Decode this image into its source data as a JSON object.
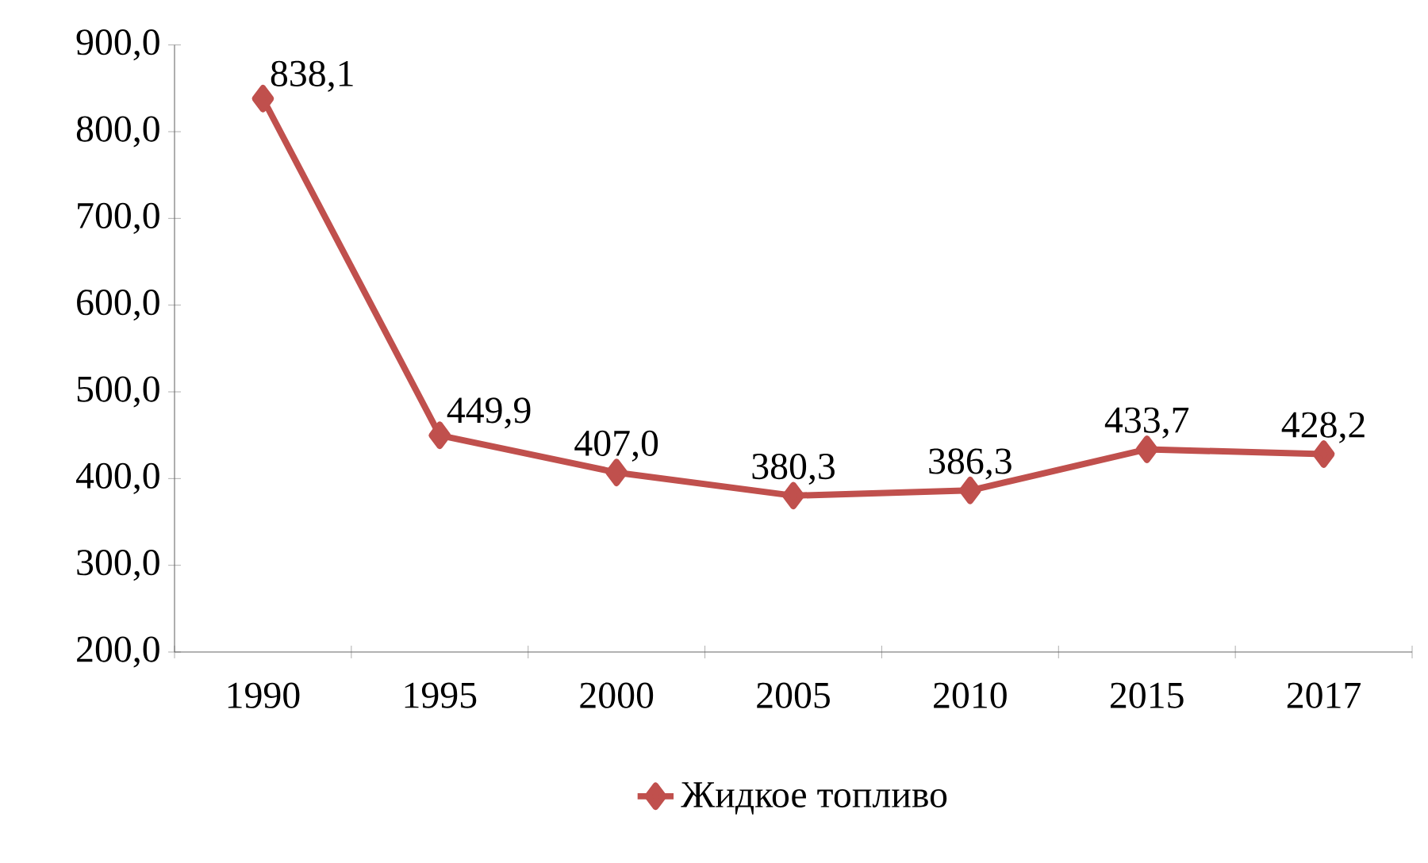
{
  "chart_data": {
    "type": "line",
    "categories": [
      "1990",
      "1995",
      "2000",
      "2005",
      "2010",
      "2015",
      "2017"
    ],
    "series": [
      {
        "name": "Жидкое топливо",
        "color": "#c0504d",
        "values": [
          838.1,
          449.9,
          407.0,
          380.3,
          386.3,
          433.7,
          428.2
        ],
        "value_labels": [
          "838,1",
          "449,9",
          "407,0",
          "380,3",
          "386,3",
          "433,7",
          "428,2"
        ]
      }
    ],
    "ylim": [
      200,
      900
    ],
    "yticks": [
      {
        "value": 200,
        "label": "200,0"
      },
      {
        "value": 300,
        "label": "300,0"
      },
      {
        "value": 400,
        "label": "400,0"
      },
      {
        "value": 500,
        "label": "500,0"
      },
      {
        "value": 600,
        "label": "600,0"
      },
      {
        "value": 700,
        "label": "700,0"
      },
      {
        "value": 800,
        "label": "800,0"
      },
      {
        "value": 900,
        "label": "900,0"
      }
    ],
    "grid": false,
    "legend": "bottom",
    "marker": "diamond",
    "line_style": "solid"
  }
}
